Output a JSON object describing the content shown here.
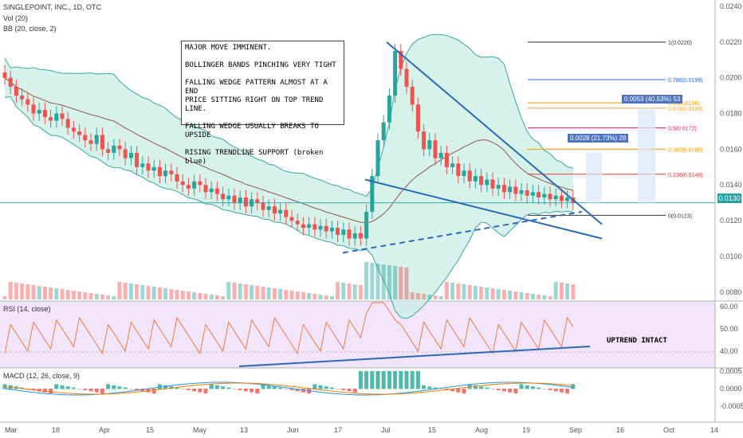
{
  "legend": {
    "symbol": "SINGLEPOINT, INC., 1D, OTC",
    "vol": "Vol (20)",
    "bb": "BB (20, close, 2)",
    "rsi": "RSI (14, close)",
    "macd": "MACD (12, 26, close, 9)"
  },
  "note_text": "MAJOR MOVE IMMINENT.\n\nBOLLINGER BANDS PINCHING VERY TIGHT\n\nFALLING WEDGE PATTERN ALMOST AT A END\nPRICE SITTING RIGHT ON TOP TREND LINE.\n\nFALLING WEDGE USUALLY BREAKS TO UPSIDE\n\nRISING TRENDLINE SUPPORT (broken blue)",
  "rsi_note": "UPTREND INTACT",
  "current_price": "0.0130",
  "range_labels": [
    "0.0028 (21.73%) 28",
    "0.0053 (40.53%) 53"
  ],
  "colors": {
    "up": "#26a69a",
    "down": "#ef5350",
    "trend": "#2b6ab5",
    "bb_fill": "#cdeee6",
    "bb_line": "#3ba7a0",
    "rsi_bg": "#f2e4fb",
    "rsi_line": "#f07c3e",
    "macd_line": "#2196f3",
    "signal_line": "#f57c00"
  },
  "chart_data": {
    "type": "candlestick",
    "x_ticks": [
      "Mar",
      "18",
      "Apr",
      "15",
      "May",
      "13",
      "Jun",
      "17",
      "Jul",
      "15",
      "Aug",
      "19",
      "Sep",
      "16",
      "Oct",
      "14"
    ],
    "price_axis": [
      "0.0240",
      "0.0220",
      "0.0200",
      "0.0180",
      "0.0160",
      "0.0140",
      "0.0120",
      "0.0100",
      "0.0080"
    ],
    "rsi_axis": [
      "60.00",
      "50.00",
      "40.00"
    ],
    "macd_axis": [
      "0.0005",
      "0.0000",
      "-0.0005"
    ],
    "fib_levels": [
      {
        "label": "1(0.0220)",
        "value": 0.022,
        "color": "#333333"
      },
      {
        "label": "0.786(0.0199)",
        "value": 0.0199,
        "color": "#2962ff"
      },
      {
        "label": "0.65(0.0186)",
        "value": 0.0186,
        "color": "#ff9800"
      },
      {
        "label": "0.618(0.0183)",
        "value": 0.0183,
        "color": "#f7a23b"
      },
      {
        "label": "0.5(0.0172)",
        "value": 0.0172,
        "color": "#e91e63"
      },
      {
        "label": "0.382(0.0160)",
        "value": 0.016,
        "color": "#ff9800"
      },
      {
        "label": "0.236(0.0146)",
        "value": 0.0146,
        "color": "#e53935"
      },
      {
        "label": "0(0.0123)",
        "value": 0.0123,
        "color": "#333333"
      }
    ],
    "closes": [
      0.02,
      0.0195,
      0.019,
      0.0188,
      0.0185,
      0.018,
      0.0182,
      0.0178,
      0.0176,
      0.018,
      0.0177,
      0.0172,
      0.017,
      0.0168,
      0.0165,
      0.0163,
      0.0168,
      0.016,
      0.0158,
      0.0162,
      0.016,
      0.0155,
      0.0158,
      0.015,
      0.0152,
      0.0148,
      0.015,
      0.0145,
      0.0148,
      0.0146,
      0.0142,
      0.014,
      0.0138,
      0.0142,
      0.014,
      0.0136,
      0.0138,
      0.0135,
      0.0132,
      0.0134,
      0.013,
      0.0133,
      0.0128,
      0.0132,
      0.013,
      0.0126,
      0.0128,
      0.0124,
      0.0126,
      0.0122,
      0.012,
      0.0118,
      0.0116,
      0.0118,
      0.0115,
      0.0117,
      0.0114,
      0.0116,
      0.0112,
      0.0115,
      0.011,
      0.0113,
      0.011,
      0.0125,
      0.0145,
      0.0165,
      0.0175,
      0.019,
      0.0215,
      0.0205,
      0.0195,
      0.0185,
      0.017,
      0.016,
      0.0165,
      0.0155,
      0.0158,
      0.015,
      0.0152,
      0.0145,
      0.0148,
      0.0142,
      0.0145,
      0.014,
      0.0143,
      0.0138,
      0.014,
      0.0136,
      0.0139,
      0.0135,
      0.0137,
      0.0134,
      0.0136,
      0.0133,
      0.0135,
      0.0132,
      0.0134,
      0.0131,
      0.0133,
      0.013
    ]
  }
}
